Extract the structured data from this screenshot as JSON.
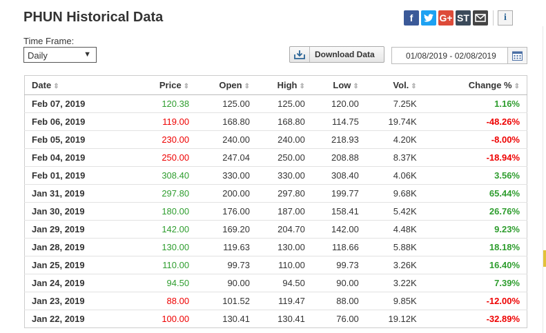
{
  "page": {
    "title": "PHUN Historical Data"
  },
  "share": {
    "icons": [
      "facebook-icon",
      "twitter-icon",
      "google-plus-icon",
      "stocktwits-icon",
      "email-icon",
      "info-icon"
    ],
    "facebook_glyph": "f",
    "twitter_glyph": "t",
    "google_glyph": "G+",
    "stocktwits_glyph": "ST",
    "info_glyph": "i",
    "colors": {
      "facebook": "#3b5998",
      "twitter": "#1da1f2",
      "google": "#dd4b39",
      "stocktwits": "#3b4a5a",
      "email": "#444444"
    }
  },
  "controls": {
    "timeframe_label": "Time Frame:",
    "timeframe_value": "Daily",
    "caret": "▼",
    "download_label": "Download Data",
    "date_range": "01/08/2019 - 02/08/2019"
  },
  "table": {
    "columns": [
      "Date",
      "Price",
      "Open",
      "High",
      "Low",
      "Vol.",
      "Change %"
    ],
    "sort_glyph": "⇕",
    "rows": [
      {
        "date": "Feb 07, 2019",
        "price": "120.38",
        "open": "125.00",
        "high": "125.00",
        "low": "120.00",
        "vol": "7.25K",
        "change": "1.16%",
        "dir": "pos"
      },
      {
        "date": "Feb 06, 2019",
        "price": "119.00",
        "open": "168.80",
        "high": "168.80",
        "low": "114.75",
        "vol": "19.74K",
        "change": "-48.26%",
        "dir": "neg"
      },
      {
        "date": "Feb 05, 2019",
        "price": "230.00",
        "open": "240.00",
        "high": "240.00",
        "low": "218.93",
        "vol": "4.20K",
        "change": "-8.00%",
        "dir": "neg"
      },
      {
        "date": "Feb 04, 2019",
        "price": "250.00",
        "open": "247.04",
        "high": "250.00",
        "low": "208.88",
        "vol": "8.37K",
        "change": "-18.94%",
        "dir": "neg"
      },
      {
        "date": "Feb 01, 2019",
        "price": "308.40",
        "open": "330.00",
        "high": "330.00",
        "low": "308.40",
        "vol": "4.06K",
        "change": "3.56%",
        "dir": "pos"
      },
      {
        "date": "Jan 31, 2019",
        "price": "297.80",
        "open": "200.00",
        "high": "297.80",
        "low": "199.77",
        "vol": "9.68K",
        "change": "65.44%",
        "dir": "pos"
      },
      {
        "date": "Jan 30, 2019",
        "price": "180.00",
        "open": "176.00",
        "high": "187.00",
        "low": "158.41",
        "vol": "5.42K",
        "change": "26.76%",
        "dir": "pos"
      },
      {
        "date": "Jan 29, 2019",
        "price": "142.00",
        "open": "169.20",
        "high": "204.70",
        "low": "142.00",
        "vol": "4.48K",
        "change": "9.23%",
        "dir": "pos"
      },
      {
        "date": "Jan 28, 2019",
        "price": "130.00",
        "open": "119.63",
        "high": "130.00",
        "low": "118.66",
        "vol": "5.88K",
        "change": "18.18%",
        "dir": "pos"
      },
      {
        "date": "Jan 25, 2019",
        "price": "110.00",
        "open": "99.73",
        "high": "110.00",
        "low": "99.73",
        "vol": "3.26K",
        "change": "16.40%",
        "dir": "pos"
      },
      {
        "date": "Jan 24, 2019",
        "price": "94.50",
        "open": "90.00",
        "high": "94.50",
        "low": "90.00",
        "vol": "3.22K",
        "change": "7.39%",
        "dir": "pos"
      },
      {
        "date": "Jan 23, 2019",
        "price": "88.00",
        "open": "101.52",
        "high": "119.47",
        "low": "88.00",
        "vol": "9.85K",
        "change": "-12.00%",
        "dir": "neg"
      },
      {
        "date": "Jan 22, 2019",
        "price": "100.00",
        "open": "130.41",
        "high": "130.41",
        "low": "76.00",
        "vol": "19.12K",
        "change": "-32.89%",
        "dir": "neg"
      }
    ]
  }
}
